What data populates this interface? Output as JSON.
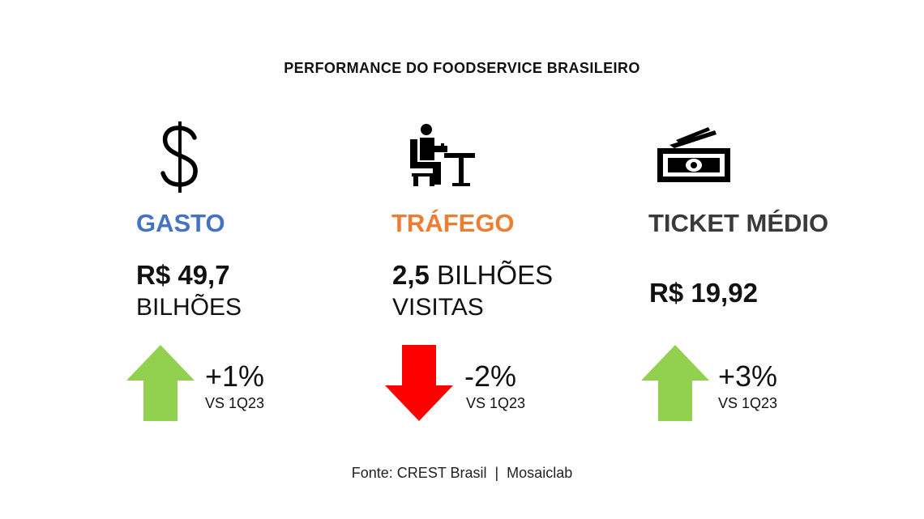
{
  "title": "PERFORMANCE DO FOODSERVICE BRASILEIRO",
  "colors": {
    "gasto": "#4472C4",
    "trafego": "#ED7D31",
    "ticket": "#3A3A3A",
    "up_arrow": "#92D050",
    "down_arrow": "#FF0000"
  },
  "metrics": [
    {
      "icon": "dollar-sign-icon",
      "label": "GASTO",
      "value_bold": "R$ 49,7",
      "value_rest": "",
      "value_line2": "BILHÕES",
      "change": "+1%",
      "trend": "up",
      "comparison": "VS 1Q23"
    },
    {
      "icon": "person-at-table-icon",
      "label": "TRÁFEGO",
      "value_bold": "2,5",
      "value_rest": " BILHÕES",
      "value_line2": "VISITAS",
      "change": "-2%",
      "trend": "down",
      "comparison": "VS 1Q23"
    },
    {
      "icon": "banknotes-icon",
      "label": "TICKET MÉDIO",
      "value_bold": "R$ 19,92",
      "value_rest": "",
      "value_line2": "",
      "change": "+3%",
      "trend": "up",
      "comparison": "VS 1Q23"
    }
  ],
  "source": "Fonte: CREST Brasil  |  Mosaiclab"
}
